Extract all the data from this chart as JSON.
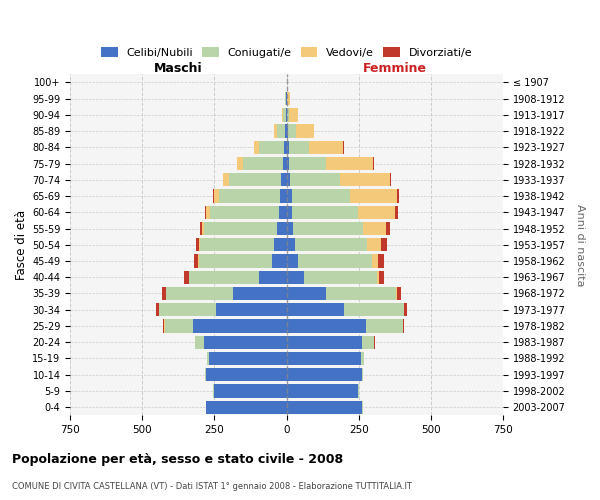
{
  "age_groups": [
    "0-4",
    "5-9",
    "10-14",
    "15-19",
    "20-24",
    "25-29",
    "30-34",
    "35-39",
    "40-44",
    "45-49",
    "50-54",
    "55-59",
    "60-64",
    "65-69",
    "70-74",
    "75-79",
    "80-84",
    "85-89",
    "90-94",
    "95-99",
    "100+"
  ],
  "birth_years": [
    "2003-2007",
    "1998-2002",
    "1993-1997",
    "1988-1992",
    "1983-1987",
    "1978-1982",
    "1973-1977",
    "1968-1972",
    "1963-1967",
    "1958-1962",
    "1953-1957",
    "1948-1952",
    "1943-1947",
    "1938-1942",
    "1933-1937",
    "1928-1932",
    "1923-1927",
    "1918-1922",
    "1913-1917",
    "1908-1912",
    "≤ 1907"
  ],
  "male_celibi": [
    278,
    252,
    278,
    268,
    285,
    325,
    245,
    185,
    95,
    52,
    42,
    33,
    28,
    22,
    18,
    12,
    8,
    5,
    3,
    2,
    0
  ],
  "male_coniugati": [
    2,
    2,
    4,
    8,
    33,
    98,
    198,
    232,
    242,
    252,
    258,
    252,
    238,
    212,
    182,
    138,
    88,
    28,
    8,
    2,
    0
  ],
  "male_vedovi": [
    0,
    0,
    0,
    0,
    0,
    1,
    1,
    2,
    2,
    4,
    4,
    8,
    12,
    18,
    22,
    22,
    18,
    12,
    5,
    2,
    0
  ],
  "male_divorziati": [
    0,
    0,
    0,
    0,
    1,
    4,
    9,
    14,
    17,
    14,
    10,
    8,
    5,
    2,
    0,
    0,
    0,
    0,
    0,
    0,
    0
  ],
  "female_nubili": [
    262,
    248,
    262,
    258,
    262,
    275,
    198,
    138,
    62,
    38,
    28,
    23,
    20,
    18,
    13,
    9,
    7,
    4,
    2,
    1,
    0
  ],
  "female_coniugate": [
    2,
    2,
    4,
    10,
    42,
    128,
    208,
    242,
    252,
    258,
    252,
    242,
    228,
    202,
    172,
    128,
    72,
    28,
    8,
    2,
    0
  ],
  "female_vedove": [
    0,
    0,
    0,
    0,
    0,
    1,
    2,
    4,
    8,
    22,
    48,
    78,
    128,
    162,
    172,
    162,
    118,
    62,
    28,
    8,
    1
  ],
  "female_divorziate": [
    0,
    0,
    0,
    0,
    1,
    4,
    11,
    14,
    17,
    19,
    21,
    17,
    11,
    7,
    4,
    3,
    2,
    0,
    0,
    0,
    0
  ],
  "colors": {
    "celibi": "#4472C4",
    "coniugati": "#B8D4A8",
    "vedovi": "#F5C97A",
    "divorziati": "#C0392B"
  },
  "xlim": 750,
  "title": "Popolazione per età, sesso e stato civile - 2008",
  "subtitle": "COMUNE DI CIVITA CASTELLANA (VT) - Dati ISTAT 1° gennaio 2008 - Elaborazione TUTTITALIA.IT",
  "xlabel_left": "Maschi",
  "xlabel_right": "Femmine",
  "ylabel_left": "Fasce di età",
  "ylabel_right": "Anni di nascita",
  "legend_labels": [
    "Celibi/Nubili",
    "Coniugati/e",
    "Vedovi/e",
    "Divorziati/e"
  ],
  "legend_colors": [
    "#4472C4",
    "#B8D4A8",
    "#F5C97A",
    "#C0392B"
  ]
}
